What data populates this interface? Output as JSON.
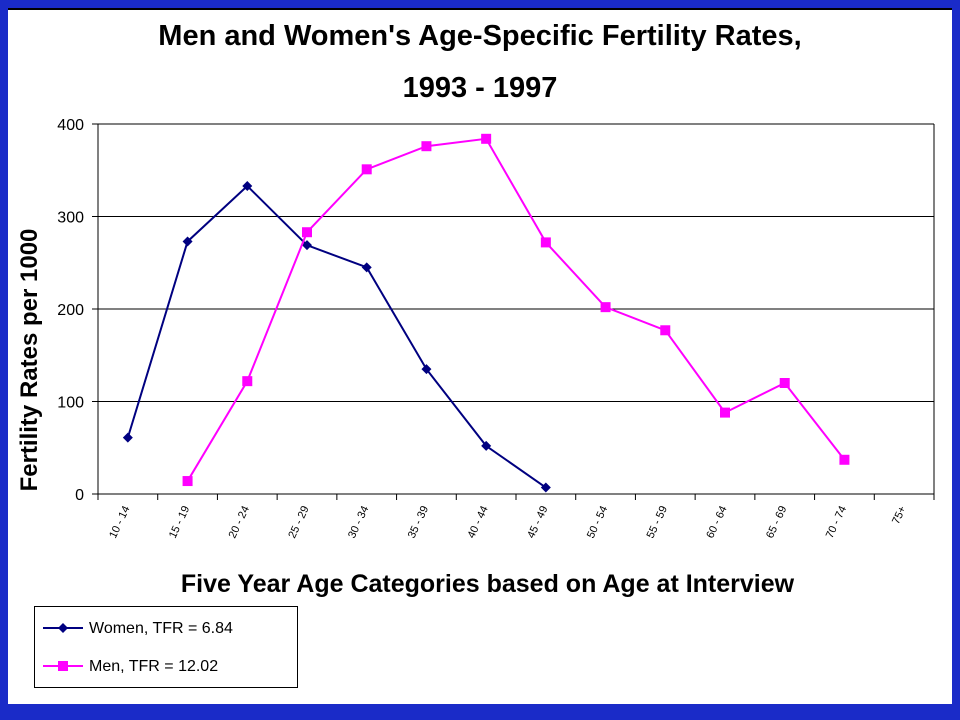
{
  "title_line1": "Men and Women's Age-Specific Fertility Rates,",
  "title_line2": "1993 - 1997",
  "chart_data": {
    "type": "line",
    "title": "Men and Women's Age-Specific Fertility Rates, 1993 - 1997",
    "xlabel": "Five Year Age Categories based on Age at Interview",
    "ylabel": "Fertility Rates per 1000",
    "ylim": [
      0,
      400
    ],
    "yticks": [
      0,
      100,
      200,
      300,
      400
    ],
    "grid": true,
    "legend_position": "bottom-left",
    "categories": [
      "10 - 14",
      "15 - 19",
      "20 - 24",
      "25 - 29",
      "30 - 34",
      "35 - 39",
      "40 - 44",
      "45 - 49",
      "50 - 54",
      "55 - 59",
      "60 - 64",
      "65 - 69",
      "70 - 74",
      "75+"
    ],
    "series": [
      {
        "name": "Women, TFR = 6.84",
        "color": "#000080",
        "marker": "diamond",
        "values": [
          61,
          273,
          333,
          269,
          245,
          135,
          52,
          7,
          null,
          null,
          null,
          null,
          null,
          null
        ]
      },
      {
        "name": "Men, TFR = 12.02",
        "color": "#ff00ff",
        "marker": "square",
        "values": [
          null,
          14,
          122,
          283,
          351,
          376,
          384,
          272,
          202,
          177,
          88,
          120,
          37,
          null
        ]
      }
    ]
  }
}
